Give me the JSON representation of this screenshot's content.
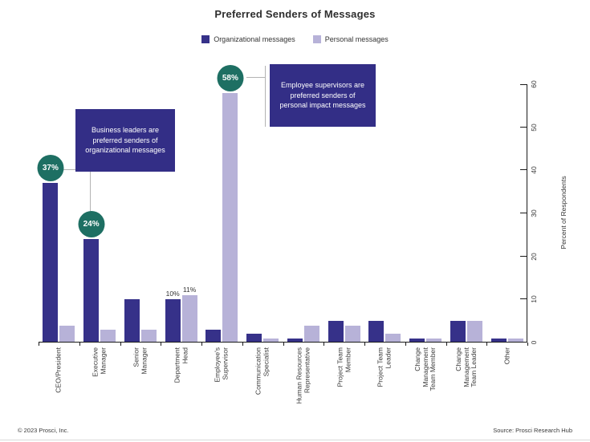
{
  "title": "Preferred Senders of Messages",
  "legend": [
    {
      "label": "Organizational messages",
      "color": "#363189"
    },
    {
      "label": "Personal messages",
      "color": "#b7b2d8"
    }
  ],
  "chart_data": {
    "type": "bar",
    "title": "Preferred Senders of Messages",
    "xlabel": "",
    "ylabel": "Percent of Respondents",
    "ylim": [
      0,
      60
    ],
    "yticks": [
      0,
      10,
      20,
      30,
      40,
      50,
      60
    ],
    "grid": false,
    "legend_position": "top-center",
    "y_axis_side": "right",
    "categories": [
      "CEO/President",
      "Executive\nManager",
      "Senior\nManager",
      "Department\nHead",
      "Employee's\nSupervisor",
      "Communication\nSpecialist",
      "Human Resources\nRepresentative",
      "Project Team\nMember",
      "Project Team\nLeader",
      "Change\nManagement\nTeam Member",
      "Change\nManagement\nTeam Leader",
      "Other"
    ],
    "series": [
      {
        "name": "Organizational messages",
        "color": "#363189",
        "values": [
          37,
          24,
          10,
          10,
          3,
          2,
          1,
          5,
          5,
          1,
          5,
          1
        ],
        "badges": {
          "0": "37%",
          "1": "24%"
        },
        "value_labels": {
          "3": "10%"
        }
      },
      {
        "name": "Personal messages",
        "color": "#b7b2d8",
        "values": [
          4,
          3,
          3,
          11,
          58,
          1,
          4,
          4,
          2,
          1,
          5,
          1
        ],
        "badges": {
          "4": "58%"
        },
        "value_labels": {
          "3": "11%"
        }
      }
    ]
  },
  "annotations": [
    {
      "text": "Business leaders are preferred senders of organizational messages"
    },
    {
      "text": "Employee supervisors are preferred senders of personal impact messages"
    }
  ],
  "colors": {
    "badge": "#1e6f63",
    "annotation_bg": "#332e86",
    "axis": "#1a1a1a",
    "connector": "#b3b3b3"
  },
  "footer": {
    "left": "© 2023 Prosci, Inc.",
    "right": "Source: Prosci Research Hub"
  }
}
